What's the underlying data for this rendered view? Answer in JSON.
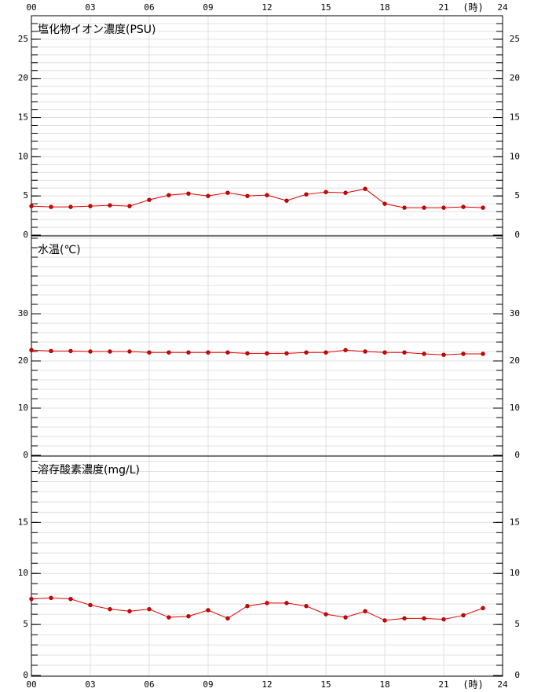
{
  "chart_data": [
    {
      "type": "line",
      "title": "塩化物イオン濃度(PSU)",
      "x_label": "(時)",
      "x": [
        0,
        1,
        2,
        3,
        4,
        5,
        6,
        7,
        8,
        9,
        10,
        11,
        12,
        13,
        14,
        15,
        16,
        17,
        18,
        19,
        20,
        21,
        22,
        23
      ],
      "series": [
        {
          "name": "塩化物イオン濃度",
          "color": "#e00000",
          "values": [
            3.7,
            3.6,
            3.6,
            3.7,
            3.8,
            3.7,
            4.5,
            5.1,
            5.3,
            5.0,
            5.4,
            5.0,
            5.1,
            4.4,
            5.2,
            5.5,
            5.4,
            5.9,
            4.0,
            3.5,
            3.5,
            3.5,
            3.6,
            3.5
          ]
        }
      ],
      "xlim": [
        0,
        24
      ],
      "xticks": [
        {
          "value": 0,
          "label": "00"
        },
        {
          "value": 3,
          "label": "03"
        },
        {
          "value": 6,
          "label": "06"
        },
        {
          "value": 9,
          "label": "09"
        },
        12,
        15,
        18,
        21,
        24
      ],
      "ylim": [
        0,
        28
      ],
      "yticks": [
        0,
        5,
        10,
        15,
        20,
        25
      ],
      "minor_step": 1,
      "grid": true
    },
    {
      "type": "line",
      "title": "水温(℃)",
      "x": [
        0,
        1,
        2,
        3,
        4,
        5,
        6,
        7,
        8,
        9,
        10,
        11,
        12,
        13,
        14,
        15,
        16,
        17,
        18,
        19,
        20,
        21,
        22,
        23
      ],
      "series": [
        {
          "name": "水温",
          "color": "#e00000",
          "values": [
            22.3,
            22.1,
            22.1,
            22.0,
            22.0,
            22.0,
            21.8,
            21.8,
            21.8,
            21.8,
            21.8,
            21.6,
            21.6,
            21.6,
            21.8,
            21.8,
            22.3,
            22.0,
            21.8,
            21.8,
            21.5,
            21.3,
            21.5,
            21.5
          ]
        }
      ],
      "xlim": [
        0,
        24
      ],
      "xticks": [
        {
          "value": 0,
          "label": "00"
        },
        {
          "value": 3,
          "label": "03"
        },
        {
          "value": 6,
          "label": "06"
        },
        {
          "value": 9,
          "label": "09"
        },
        12,
        15,
        18,
        21,
        24
      ],
      "ylim": [
        0,
        46.5
      ],
      "yticks": [
        0,
        10,
        20,
        30
      ],
      "minor_step": 2,
      "grid": true
    },
    {
      "type": "line",
      "title": "溶存酸素濃度(mg/L)",
      "x_label": "(時)",
      "x": [
        0,
        1,
        2,
        3,
        4,
        5,
        6,
        7,
        8,
        9,
        10,
        11,
        12,
        13,
        14,
        15,
        16,
        17,
        18,
        19,
        20,
        21,
        22,
        23
      ],
      "series": [
        {
          "name": "溶存酸素濃度",
          "color": "#e00000",
          "values": [
            7.5,
            7.6,
            7.5,
            6.9,
            6.5,
            6.3,
            6.5,
            5.7,
            5.8,
            6.4,
            5.6,
            6.8,
            7.1,
            7.1,
            6.8,
            6.0,
            5.7,
            6.3,
            5.4,
            5.6,
            5.6,
            5.5,
            5.9,
            6.6
          ]
        }
      ],
      "xlim": [
        0,
        24
      ],
      "xticks": [
        {
          "value": 0,
          "label": "00"
        },
        {
          "value": 3,
          "label": "03"
        },
        {
          "value": 6,
          "label": "06"
        },
        {
          "value": 9,
          "label": "09"
        },
        12,
        15,
        18,
        21,
        24
      ],
      "ylim": [
        0,
        21.5
      ],
      "yticks": [
        0,
        5,
        10,
        15
      ],
      "minor_step": 1,
      "grid": true
    }
  ]
}
